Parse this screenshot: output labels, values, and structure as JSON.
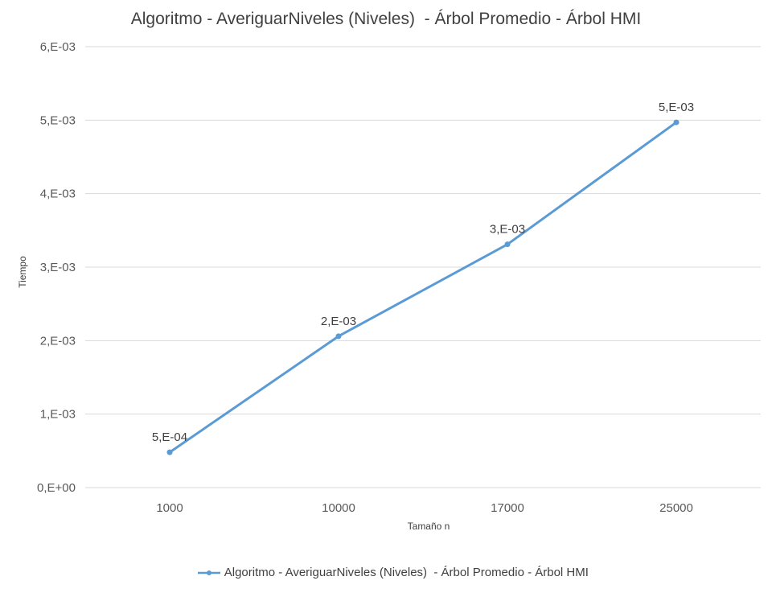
{
  "chart_data": {
    "type": "line",
    "title": "Algoritmo - AveriguarNiveles (Niveles)  - Árbol Promedio - Árbol HMI",
    "xlabel": "Tamaño n",
    "ylabel": "Tiempo",
    "categories": [
      "1000",
      "10000",
      "17000",
      "25000"
    ],
    "series": [
      {
        "name": "Algoritmo - AveriguarNiveles (Niveles)  - Árbol Promedio - Árbol HMI",
        "values": [
          0.00048,
          0.00206,
          0.00331,
          0.00497
        ],
        "data_labels": [
          "5,E-04",
          "2,E-03",
          "3,E-03",
          "5,E-03"
        ],
        "color": "#5B9BD5"
      }
    ],
    "ylim": [
      0,
      0.006
    ],
    "yticks": [
      {
        "value": 0,
        "label": "0,E+00"
      },
      {
        "value": 0.001,
        "label": "1,E-03"
      },
      {
        "value": 0.002,
        "label": "2,E-03"
      },
      {
        "value": 0.003,
        "label": "3,E-03"
      },
      {
        "value": 0.004,
        "label": "4,E-03"
      },
      {
        "value": 0.005,
        "label": "5,E-03"
      },
      {
        "value": 0.006,
        "label": "6,E-03"
      }
    ],
    "grid": true,
    "legend_position": "bottom",
    "gridline_color": "#D9D9D9"
  }
}
